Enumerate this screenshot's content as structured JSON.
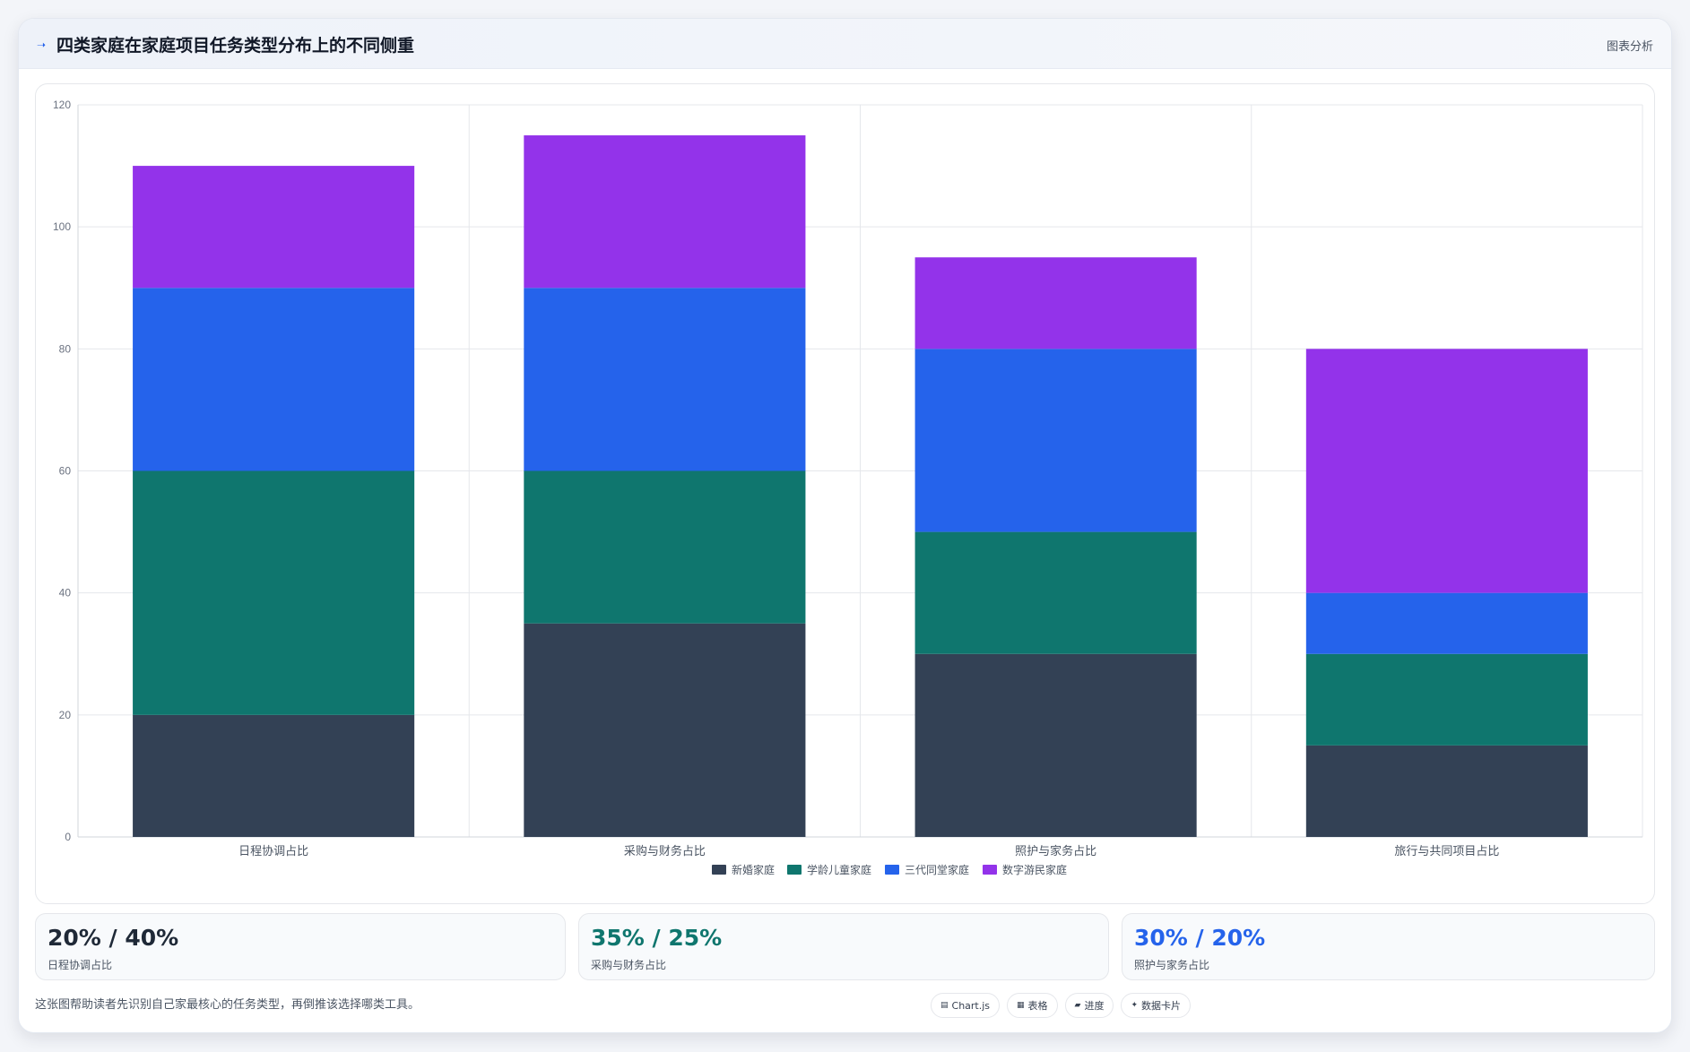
{
  "header": {
    "title": "四类家庭在家庭项目任务类型分布上的不同侧重",
    "action_label": "图表分析"
  },
  "chart_data": {
    "type": "bar",
    "stacked": true,
    "categories": [
      "日程协调占比",
      "采购与财务占比",
      "照护与家务占比",
      "旅行与共同项目占比"
    ],
    "series": [
      {
        "name": "新婚家庭",
        "color": "#334155",
        "values": [
          20,
          35,
          30,
          15
        ]
      },
      {
        "name": "学龄儿童家庭",
        "color": "#0f766e",
        "values": [
          40,
          25,
          20,
          15
        ]
      },
      {
        "name": "三代同堂家庭",
        "color": "#2563eb",
        "values": [
          30,
          30,
          30,
          10
        ]
      },
      {
        "name": "数字游民家庭",
        "color": "#9333ea",
        "values": [
          20,
          25,
          15,
          40
        ]
      }
    ],
    "ylim": [
      0,
      120
    ],
    "yticks": [
      0,
      20,
      40,
      60,
      80,
      100,
      120
    ],
    "grid": true,
    "legend_position": "bottom"
  },
  "stats": [
    {
      "value": "20% / 40%",
      "label": "日程协调占比",
      "color": "#1f2937"
    },
    {
      "value": "35% / 25%",
      "label": "采购与财务占比",
      "color": "#0f766e"
    },
    {
      "value": "30% / 20%",
      "label": "照护与家务占比",
      "color": "#2563eb"
    }
  ],
  "footer": {
    "note": "这张图帮助读者先识别自己家最核心的任务类型，再倒推该选择哪类工具。",
    "chips": [
      {
        "icon": "▤",
        "icon_name": "chart-icon",
        "label": "Chart.js"
      },
      {
        "icon": "▦",
        "icon_name": "table-icon",
        "label": "表格"
      },
      {
        "icon": "▰",
        "icon_name": "progress-icon",
        "label": "进度"
      },
      {
        "icon": "✦",
        "icon_name": "card-icon",
        "label": "数据卡片"
      }
    ]
  }
}
